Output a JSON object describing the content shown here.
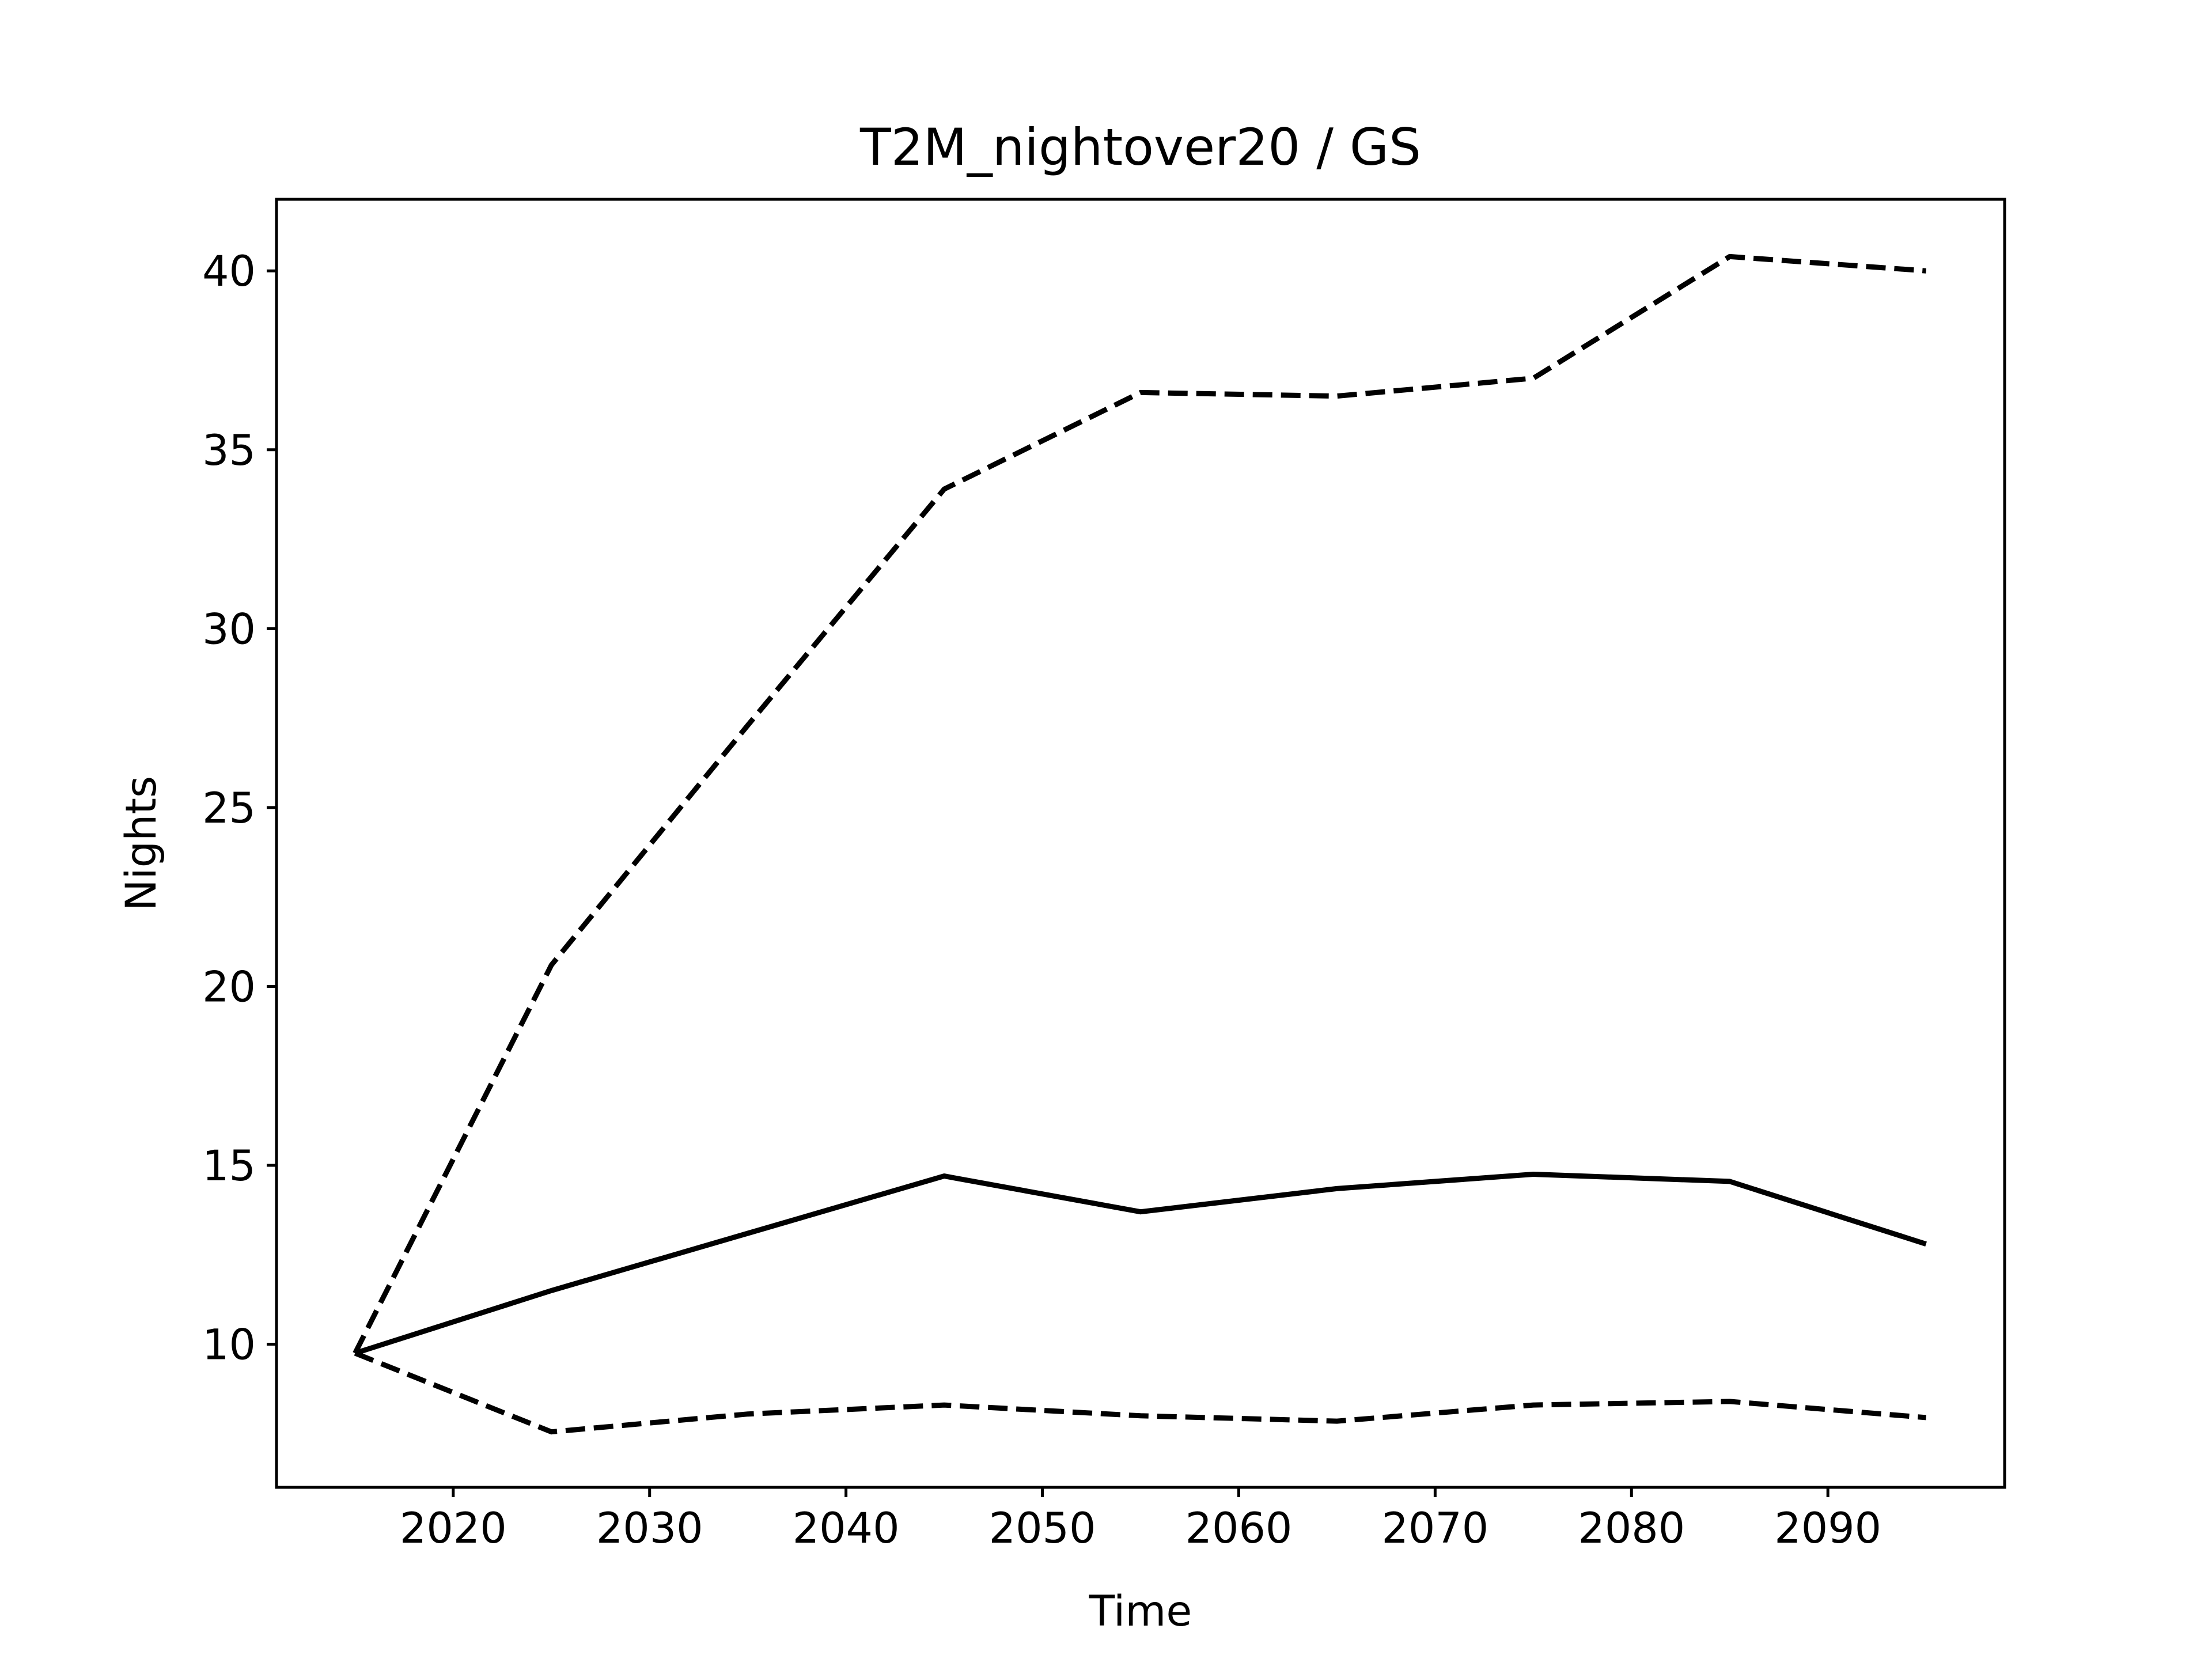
{
  "chart_data": {
    "type": "line",
    "title": "T2M_nightover20 / GS",
    "xlabel": "Time",
    "ylabel": "Nights",
    "x": [
      2015,
      2025,
      2035,
      2045,
      2055,
      2065,
      2075,
      2085,
      2095
    ],
    "xlim": [
      2011,
      2099
    ],
    "ylim": [
      6,
      42
    ],
    "xticks": [
      2020,
      2030,
      2040,
      2050,
      2060,
      2070,
      2080,
      2090
    ],
    "yticks": [
      10,
      15,
      20,
      25,
      30,
      35,
      40
    ],
    "grid": false,
    "series": [
      {
        "style": "dashed",
        "color": "#000000",
        "values": [
          9.75,
          20.6,
          27.3,
          33.9,
          36.6,
          36.5,
          37.0,
          40.4,
          40.0
        ]
      },
      {
        "style": "solid",
        "color": "#000000",
        "values": [
          9.75,
          11.5,
          13.1,
          14.7,
          13.7,
          14.35,
          14.75,
          14.55,
          12.8
        ]
      },
      {
        "style": "dashed",
        "color": "#000000",
        "values": [
          9.75,
          7.55,
          8.05,
          8.3,
          8.0,
          7.85,
          8.3,
          8.4,
          7.95
        ]
      }
    ]
  }
}
